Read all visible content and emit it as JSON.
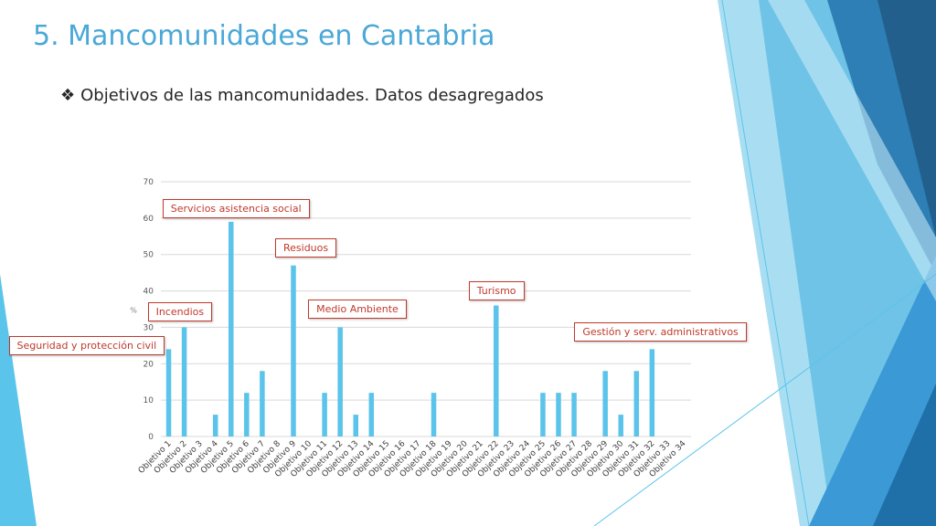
{
  "slide": {
    "title": "5. Mancomunidades en Cantabria",
    "subtitle": "Objetivos de las mancomunidades. Datos desagregados",
    "accent_color": "#4aa8d8"
  },
  "chart_data": {
    "type": "bar",
    "categories": [
      "Objetivo 1",
      "Objetivo 2",
      "Objetivo 3",
      "Objetivo 4",
      "Objetivo 5",
      "Objetivo 6",
      "Objetivo 7",
      "Objetivo 8",
      "Objetivo 9",
      "Objetivo 10",
      "Objetivo 11",
      "Objetivo 12",
      "Objetivo 13",
      "Objetivo 14",
      "Objetivo 15",
      "Objetivo 16",
      "Objetivo 17",
      "Objetivo 18",
      "Objetivo 19",
      "Objetivo 20",
      "Objetivo 21",
      "Objetivo 22",
      "Objetivo 23",
      "Objetivo 24",
      "Objetivo 25",
      "Objetivo 26",
      "Objetivo 27",
      "Objetivo 28",
      "Objetivo 29",
      "Objetivo 30",
      "Objetivo 31",
      "Objetivo 32",
      "Objetivo 33",
      "Objetivo 34"
    ],
    "values": [
      24,
      30,
      0,
      6,
      59,
      12,
      18,
      0,
      47,
      0,
      12,
      30,
      6,
      12,
      0,
      0,
      0,
      12,
      0,
      0,
      0,
      36,
      0,
      0,
      12,
      12,
      12,
      0,
      18,
      6,
      18,
      24,
      0,
      0
    ],
    "ylim": [
      0,
      70
    ],
    "yticks": [
      0,
      10,
      20,
      30,
      40,
      50,
      60,
      70
    ],
    "ylabel": "%",
    "grid": true,
    "bar_color": "#5bc4ea",
    "annotations": [
      {
        "text": "Seguridad y protección civil",
        "category": "Objetivo 1"
      },
      {
        "text": "Incendios",
        "category": "Objetivo 2"
      },
      {
        "text": "Servicios asistencia social",
        "category": "Objetivo 5"
      },
      {
        "text": "Residuos",
        "category": "Objetivo 9"
      },
      {
        "text": "Medio Ambiente",
        "category": "Objetivo 12"
      },
      {
        "text": "Turismo",
        "category": "Objetivo 22"
      },
      {
        "text": "Gestión y serv. administrativos",
        "category": "Objetivo 32"
      }
    ]
  }
}
